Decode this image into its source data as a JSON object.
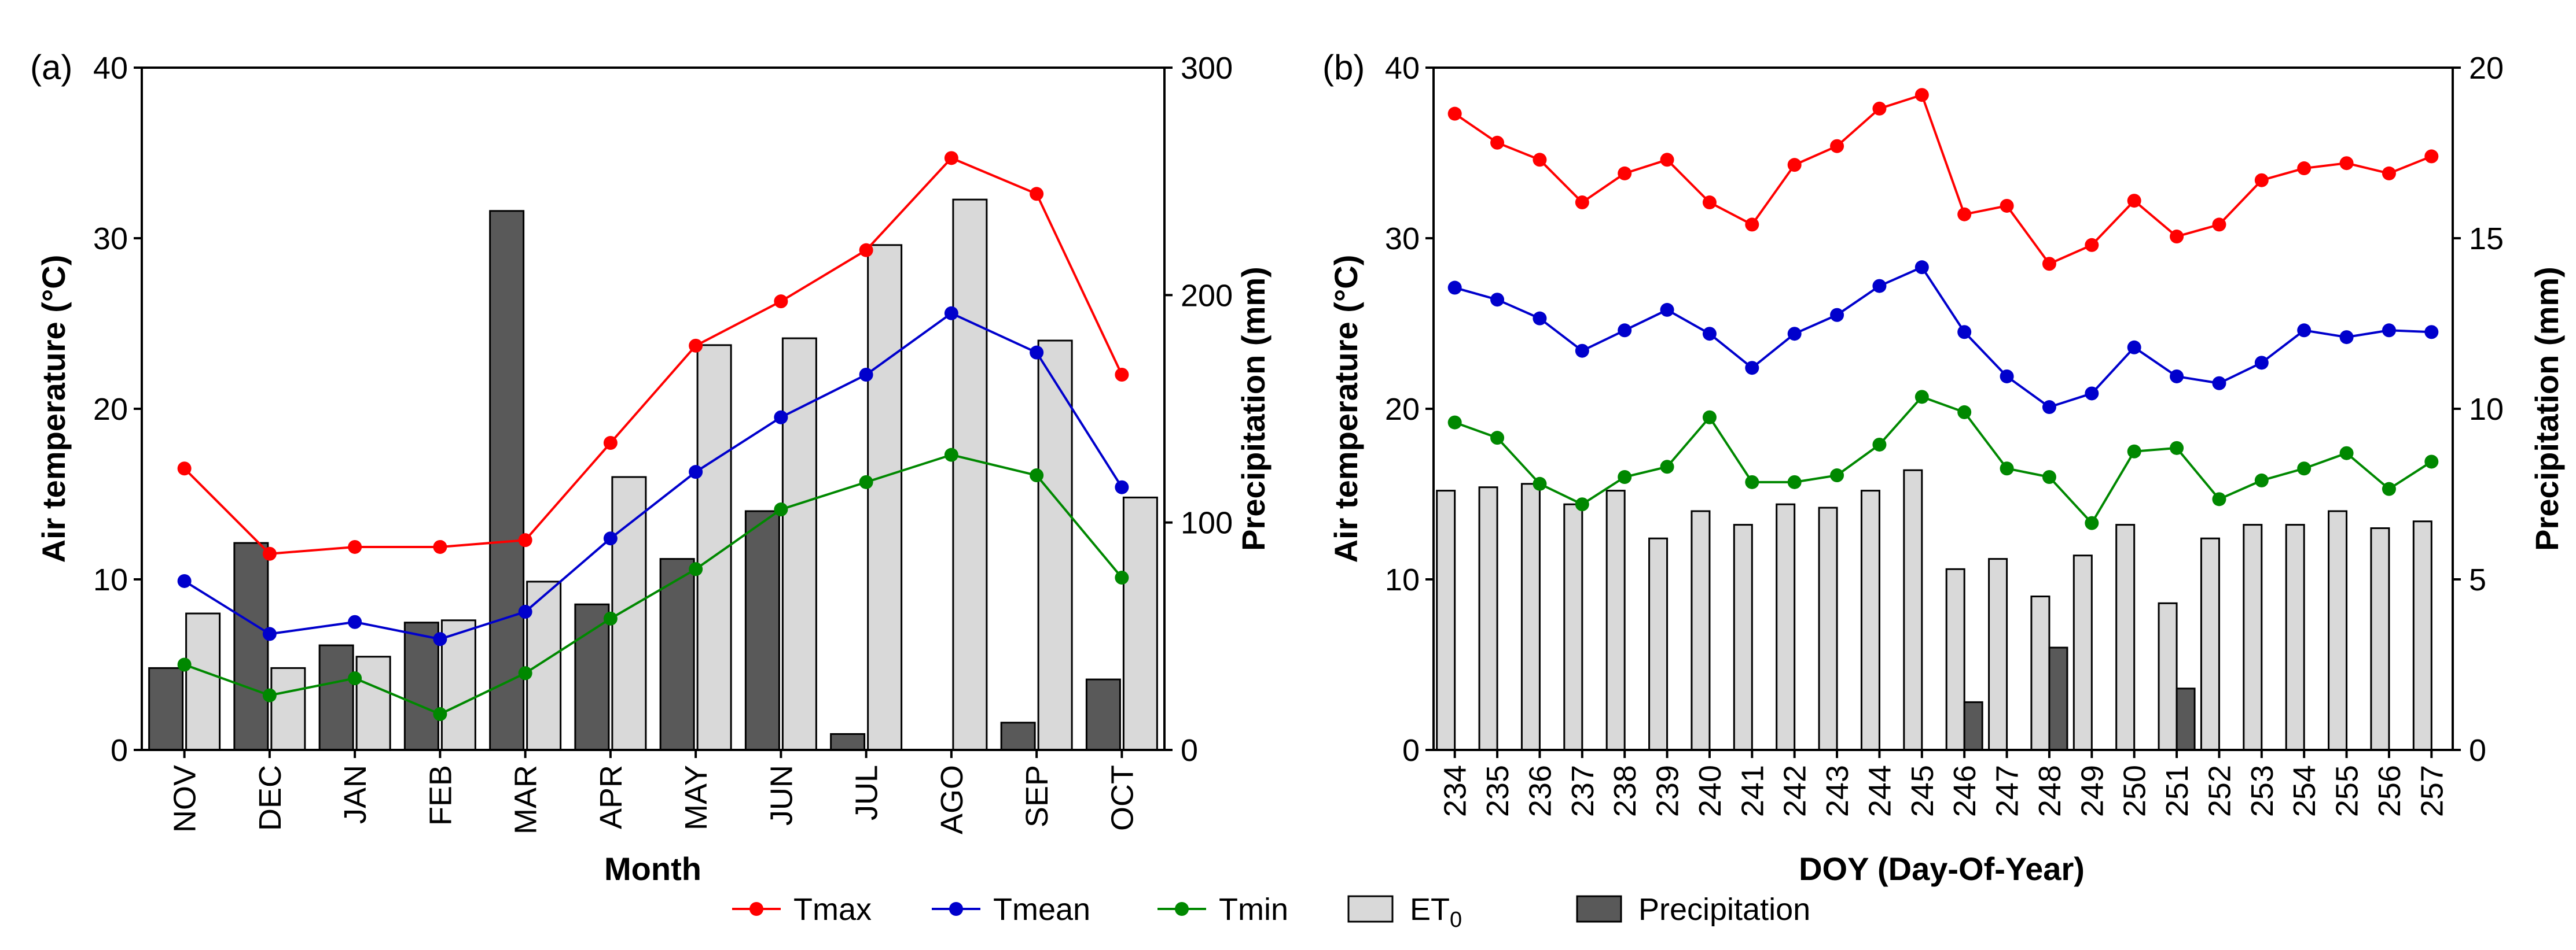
{
  "chart_data": [
    {
      "type": "bar+line",
      "panel_label": "(a)",
      "xlabel": "Month",
      "ylabel_left": "Air temperature (°C)",
      "ylabel_right": "Precipitation (mm)",
      "ylim_left": [
        0,
        40
      ],
      "ylim_right": [
        0,
        300
      ],
      "yticks_left": [
        0,
        10,
        20,
        30,
        40
      ],
      "yticks_right": [
        0,
        100,
        200,
        300
      ],
      "categories": [
        "NOV",
        "DEC",
        "JAN",
        "FEB",
        "MAR",
        "APR",
        "MAY",
        "JUN",
        "JUL",
        "AGO",
        "SEP",
        "OCT"
      ],
      "bar_series": [
        {
          "name": "Precipitation",
          "axis": "right",
          "color": "#595959",
          "values": [
            36,
            91,
            46,
            56,
            237,
            64,
            84,
            105,
            7,
            0,
            12,
            31
          ]
        },
        {
          "name": "ET0",
          "axis": "right",
          "color": "#d9d9d9",
          "values": [
            60,
            36,
            41,
            57,
            74,
            120,
            178,
            181,
            222,
            242,
            180,
            111
          ]
        }
      ],
      "line_series": [
        {
          "name": "Tmax",
          "axis": "left",
          "color": "#ff0000",
          "values": [
            16.5,
            11.5,
            11.9,
            11.9,
            12.3,
            18.0,
            23.7,
            26.3,
            29.3,
            34.7,
            32.6,
            22.0
          ]
        },
        {
          "name": "Tmean",
          "axis": "left",
          "color": "#0000cc",
          "values": [
            9.9,
            6.8,
            7.5,
            6.5,
            8.1,
            12.4,
            16.3,
            19.5,
            22.0,
            25.6,
            23.3,
            15.4
          ]
        },
        {
          "name": "Tmin",
          "axis": "left",
          "color": "#008800",
          "values": [
            5.0,
            3.2,
            4.2,
            2.1,
            4.5,
            7.7,
            10.6,
            14.1,
            15.7,
            17.3,
            16.1,
            10.1
          ]
        }
      ]
    },
    {
      "type": "bar+line",
      "panel_label": "(b)",
      "xlabel": "DOY (Day-Of-Year)",
      "ylabel_left": "Air temperature (°C)",
      "ylabel_right": "Precipitation (mm)",
      "ylim_left": [
        0,
        40
      ],
      "ylim_right": [
        0,
        20
      ],
      "yticks_left": [
        0,
        10,
        20,
        30,
        40
      ],
      "yticks_right": [
        0,
        5,
        10,
        15,
        20
      ],
      "categories": [
        "234",
        "235",
        "236",
        "237",
        "238",
        "239",
        "240",
        "241",
        "242",
        "243",
        "244",
        "245",
        "246",
        "247",
        "248",
        "249",
        "250",
        "251",
        "252",
        "253",
        "254",
        "255",
        "256",
        "257"
      ],
      "bar_series": [
        {
          "name": "ET0",
          "axis": "right",
          "color": "#d9d9d9",
          "values": [
            7.6,
            7.7,
            7.8,
            7.2,
            7.6,
            6.2,
            7.0,
            6.6,
            7.2,
            7.1,
            7.6,
            8.2,
            5.3,
            5.6,
            4.5,
            5.7,
            6.6,
            4.3,
            6.2,
            6.6,
            6.6,
            7.0,
            6.5,
            6.7
          ]
        },
        {
          "name": "Precipitation",
          "axis": "right",
          "color": "#595959",
          "values": [
            0,
            0,
            0,
            0,
            0,
            0,
            0,
            0,
            0,
            0,
            0,
            0,
            1.4,
            0,
            3.0,
            0,
            0,
            1.8,
            0,
            0,
            0,
            0,
            0,
            0
          ]
        }
      ],
      "line_series": [
        {
          "name": "Tmax",
          "axis": "left",
          "color": "#ff0000",
          "values": [
            37.3,
            35.6,
            34.6,
            32.1,
            33.8,
            34.6,
            32.1,
            30.8,
            34.3,
            35.4,
            37.6,
            38.4,
            31.4,
            31.9,
            28.5,
            29.6,
            32.2,
            30.1,
            30.8,
            33.4,
            34.1,
            34.4,
            33.8,
            34.8
          ]
        },
        {
          "name": "Tmean",
          "axis": "left",
          "color": "#0000cc",
          "values": [
            27.1,
            26.4,
            25.3,
            23.4,
            24.6,
            25.8,
            24.4,
            22.4,
            24.4,
            25.5,
            27.2,
            28.3,
            24.5,
            21.9,
            20.1,
            20.9,
            23.6,
            21.9,
            21.5,
            22.7,
            24.6,
            24.2,
            24.6,
            24.5
          ]
        },
        {
          "name": "Tmin",
          "axis": "left",
          "color": "#008800",
          "values": [
            19.2,
            18.3,
            15.6,
            14.4,
            16.0,
            16.6,
            19.5,
            15.7,
            15.7,
            16.1,
            17.9,
            20.7,
            19.8,
            16.5,
            16.0,
            13.3,
            17.5,
            17.7,
            14.7,
            15.8,
            16.5,
            17.4,
            15.3,
            16.9
          ]
        }
      ]
    }
  ],
  "legend": [
    {
      "label": "Tmax",
      "kind": "line",
      "color": "#ff0000"
    },
    {
      "label": "Tmean",
      "kind": "line",
      "color": "#0000cc"
    },
    {
      "label": "Tmin",
      "kind": "line",
      "color": "#008800"
    },
    {
      "label": "ET",
      "sub": "0",
      "kind": "bar",
      "color": "#d9d9d9"
    },
    {
      "label": "Precipitation",
      "kind": "bar",
      "color": "#595959"
    }
  ]
}
